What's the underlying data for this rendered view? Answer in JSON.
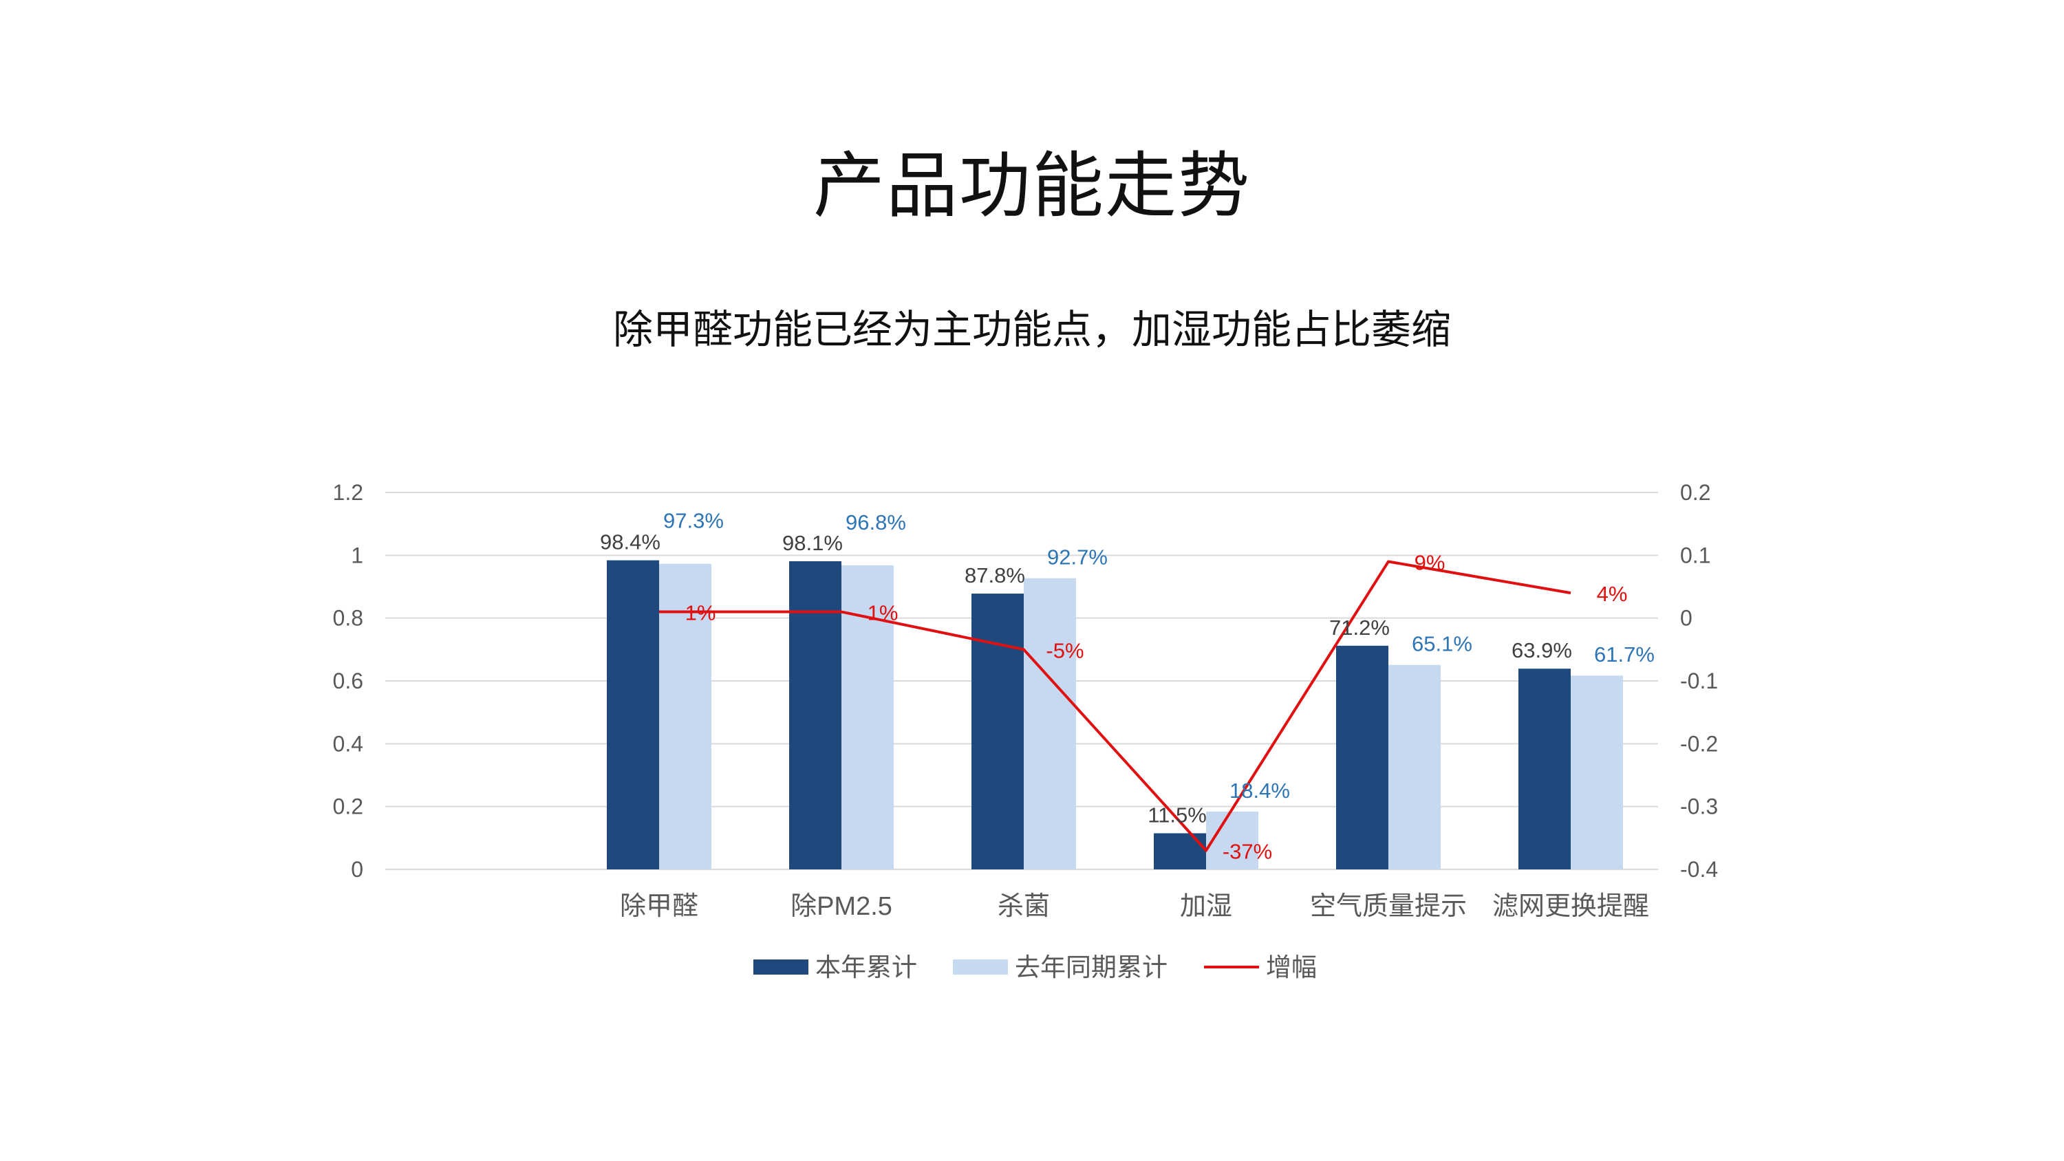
{
  "title": "产品功能走势",
  "subtitle": "除甲醛功能已经为主功能点，加湿功能占比萎缩",
  "colors": {
    "this_year": "#1F497D",
    "last_year": "#C6D9F0",
    "growth": "#E01010",
    "last_year_label": "#2E75B6",
    "grid": "#D9D9D9",
    "axis_text": "#595959"
  },
  "chart_data": {
    "type": "bar",
    "title": "",
    "categories": [
      "除甲醛",
      "除PM2.5",
      "杀菌",
      "加湿",
      "空气质量提示",
      "滤网更换提醒"
    ],
    "series": [
      {
        "name": "本年累计",
        "type": "bar",
        "axis": "left",
        "values": [
          0.984,
          0.981,
          0.878,
          0.115,
          0.712,
          0.639
        ],
        "labels": [
          "98.4%",
          "98.1%",
          "87.8%",
          "11.5%",
          "71.2%",
          "63.9%"
        ]
      },
      {
        "name": "去年同期累计",
        "type": "bar",
        "axis": "left",
        "values": [
          0.973,
          0.968,
          0.927,
          0.184,
          0.651,
          0.617
        ],
        "labels": [
          "97.3%",
          "96.8%",
          "92.7%",
          "18.4%",
          "65.1%",
          "61.7%"
        ]
      },
      {
        "name": "增幅",
        "type": "line",
        "axis": "right",
        "values": [
          0.01,
          0.01,
          -0.05,
          -0.37,
          0.09,
          0.04
        ],
        "labels": [
          "1%",
          "1%",
          "-5%",
          "-37%",
          "9%",
          "4%"
        ]
      }
    ],
    "y_left": {
      "min": 0,
      "max": 1.2,
      "ticks": [
        "0",
        "0.2",
        "0.4",
        "0.6",
        "0.8",
        "1",
        "1.2"
      ]
    },
    "y_right": {
      "min": -0.4,
      "max": 0.2,
      "ticks": [
        "-0.4",
        "-0.3",
        "-0.2",
        "-0.1",
        "0",
        "0.1",
        "0.2"
      ]
    },
    "grid": true,
    "legend_position": "bottom"
  }
}
